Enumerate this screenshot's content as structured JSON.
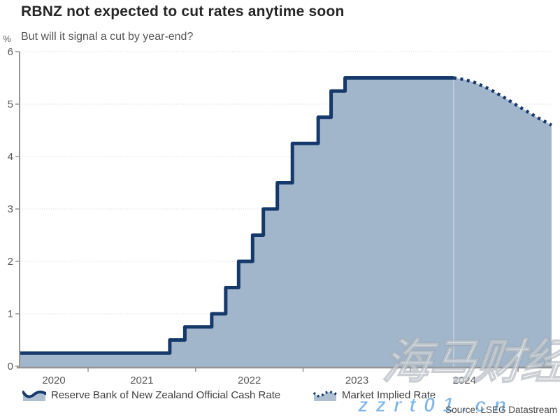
{
  "header": {
    "title": "RBNZ not expected to cut rates anytime soon",
    "subtitle": "But will it signal a cut by year-end?"
  },
  "legend": {
    "items": [
      {
        "label": "Reserve Bank of New Zealand Official Cash Rate",
        "style": "solid-step-area"
      },
      {
        "label": "Market Implied Rate",
        "style": "dotted-line-area"
      }
    ]
  },
  "source": "Source: LSEG Datastream",
  "watermark": {
    "site_name": "海马财经",
    "site_url": "zzrt01.cn"
  },
  "chart_data": {
    "type": "area",
    "subtype": "step area (historical) + dotted projected segment",
    "title": "RBNZ not expected to cut rates anytime soon",
    "subtitle": "But will it signal a cut by year-end?",
    "xlabel": "",
    "ylabel": "%",
    "ylim": [
      0,
      6
    ],
    "y_ticks": [
      0,
      1,
      2,
      3,
      4,
      5,
      6
    ],
    "x_tick_labels": [
      "2020",
      "2021",
      "2022",
      "2023",
      "2024"
    ],
    "x_boundary_years": [
      2021,
      2022,
      2023,
      2024,
      2025
    ],
    "xlim_years": [
      2020.36,
      2025.32
    ],
    "grid": "horizontal dotted gridlines at each 1 percent",
    "legend_position": "bottom",
    "series": [
      {
        "name": "Reserve Bank of New Zealand Official Cash Rate",
        "type": "step-area",
        "line": "solid",
        "points_year_value": [
          [
            2020.36,
            0.25
          ],
          [
            2021.76,
            0.5
          ],
          [
            2021.9,
            0.75
          ],
          [
            2022.15,
            1.0
          ],
          [
            2022.28,
            1.5
          ],
          [
            2022.4,
            2.0
          ],
          [
            2022.53,
            2.5
          ],
          [
            2022.63,
            3.0
          ],
          [
            2022.76,
            3.5
          ],
          [
            2022.9,
            4.25
          ],
          [
            2023.14,
            4.75
          ],
          [
            2023.26,
            5.25
          ],
          [
            2023.39,
            5.5
          ],
          [
            2024.4,
            5.5
          ]
        ]
      },
      {
        "name": "Market Implied Rate",
        "type": "line-area",
        "line": "dotted",
        "points_year_value": [
          [
            2024.4,
            5.5
          ],
          [
            2024.5,
            5.47
          ],
          [
            2024.6,
            5.41
          ],
          [
            2024.7,
            5.32
          ],
          [
            2024.8,
            5.21
          ],
          [
            2024.9,
            5.09
          ],
          [
            2025.0,
            4.96
          ],
          [
            2025.1,
            4.84
          ],
          [
            2025.2,
            4.72
          ],
          [
            2025.31,
            4.6
          ]
        ]
      }
    ],
    "colors": {
      "line": "#16396b",
      "fill": "#a2b6cb",
      "grid": "#d6d6d6",
      "axis": "#949494",
      "tick_label": "#595959",
      "title": "#262626",
      "subtitle": "#555555",
      "legend_text": "#3d3d3d",
      "source_text": "#4a4a4a",
      "watermark_blue": "#7fb5e8"
    }
  }
}
